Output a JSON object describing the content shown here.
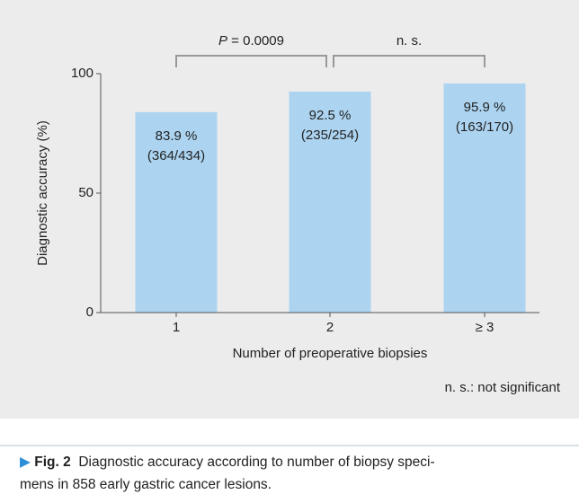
{
  "chart_data": {
    "type": "bar",
    "ylabel": "Diagnostic accuracy (%)",
    "xlabel": "Number of preoperative biopsies",
    "categories": [
      "1",
      "2",
      "≥ 3"
    ],
    "values": [
      83.9,
      92.5,
      95.9
    ],
    "value_labels": [
      "83.9 %",
      "92.5 %",
      "95.9 %"
    ],
    "counts": [
      "(364/434)",
      "(235/254)",
      "(163/170)"
    ],
    "color": "#acd4f1",
    "ylim": [
      0,
      100
    ],
    "yticks": [
      0,
      50,
      100
    ],
    "comparisons": [
      {
        "between": [
          "1",
          "2"
        ],
        "symbol": "P",
        "text": " = 0.0009"
      },
      {
        "between": [
          "2",
          "≥ 3"
        ],
        "text": "n. s."
      }
    ],
    "footnote": "n. s.: not significant"
  },
  "caption": {
    "label": "Fig. 2",
    "lines": [
      "Diagnostic accuracy according to number of biopsy speci-",
      "mens in 858 early gastric cancer lesions."
    ]
  }
}
